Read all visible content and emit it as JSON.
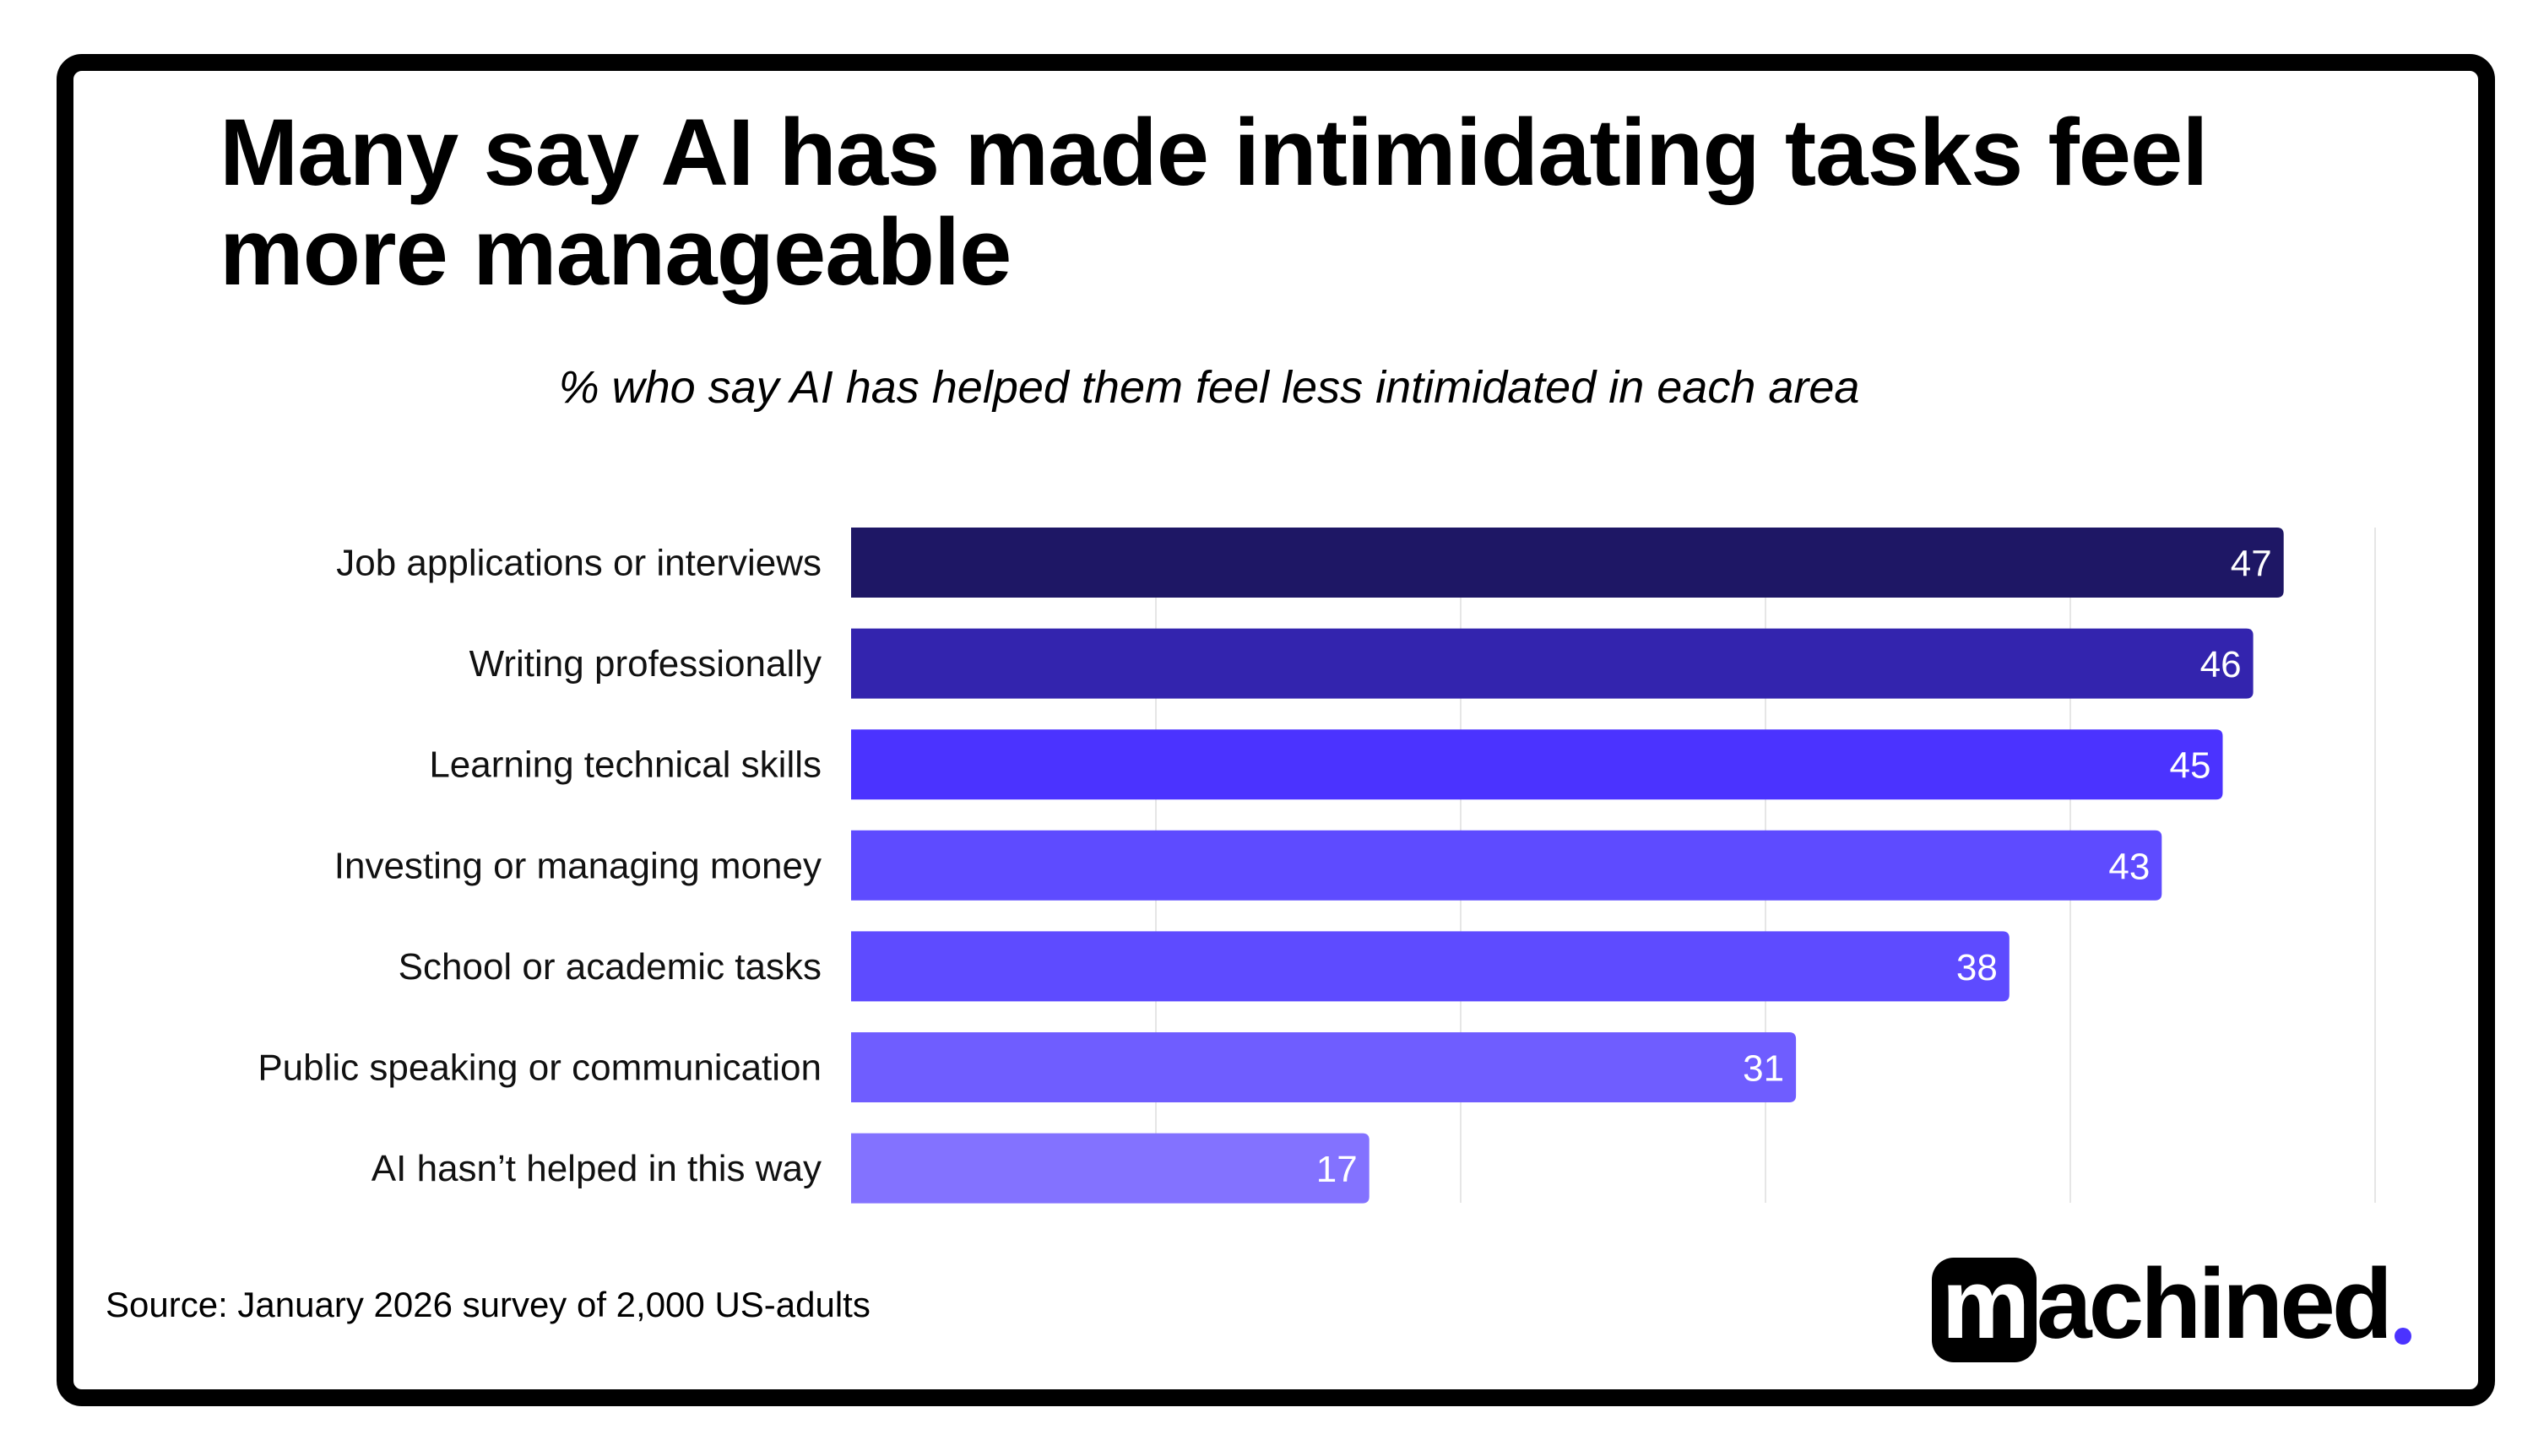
{
  "title": "Many say AI has made intimidating tasks feel more manageable",
  "subtitle": "% who say AI has helped them feel less intimidated in each area",
  "source": "Source:  January 2026 survey of 2,000 US-adults",
  "logo": {
    "text": "machined",
    "accent": "#4B33FF"
  },
  "chart_data": {
    "type": "bar",
    "orientation": "horizontal",
    "title": "Many say AI has made intimidating tasks feel more manageable",
    "subtitle": "% who say AI has helped them feel less intimidated in each area",
    "xlabel": "",
    "ylabel": "",
    "xlim": [
      0,
      50
    ],
    "grid": true,
    "gridlines": [
      10,
      20,
      30,
      40,
      50
    ],
    "categories": [
      "Job applications or interviews",
      "Writing professionally",
      "Learning technical skills",
      "Investing or managing money",
      "School or academic tasks",
      "Public speaking or communication",
      "AI hasn’t helped in this way"
    ],
    "values": [
      47,
      46,
      45,
      43,
      38,
      31,
      17
    ],
    "colors": [
      "#1E1765",
      "#3324AE",
      "#4B33FF",
      "#5E4BFF",
      "#5E4BFF",
      "#6F5DFF",
      "#8372FF"
    ],
    "data_labels": [
      "47",
      "46",
      "45",
      "43",
      "38",
      "31",
      "17"
    ]
  }
}
